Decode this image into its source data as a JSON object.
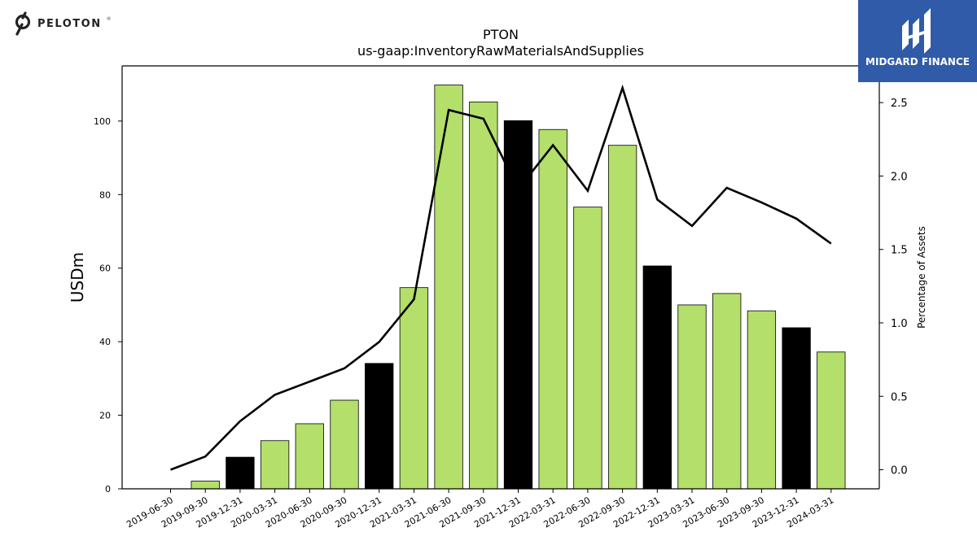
{
  "branding": {
    "left_logo_text": "PELOTON",
    "left_logo_mark": "®",
    "right_logo_text": "MIDGARD FINANCE",
    "badge_color": "#2f5ba8"
  },
  "chart_data": {
    "type": "bar",
    "title": "PTON",
    "subtitle": "us-gaap:InventoryRawMaterialsAndSupplies",
    "ylabel": "USDm",
    "y2label": "Percentage of Assets",
    "ylim": [
      0,
      115
    ],
    "y2lim": [
      -0.13,
      2.75
    ],
    "yticks": [
      0,
      20,
      40,
      60,
      80,
      100
    ],
    "y2ticks": [
      0.0,
      0.5,
      1.0,
      1.5,
      2.0,
      2.5
    ],
    "categories": [
      "2019-06-30",
      "2019-09-30",
      "2019-12-31",
      "2020-03-31",
      "2020-06-30",
      "2020-09-30",
      "2020-12-31",
      "2021-03-31",
      "2021-06-30",
      "2021-09-30",
      "2021-12-31",
      "2022-03-31",
      "2022-06-30",
      "2022-09-30",
      "2022-12-31",
      "2023-03-31",
      "2023-06-30",
      "2023-09-30",
      "2023-12-31",
      "2024-03-31"
    ],
    "series": [
      {
        "type": "bar",
        "axis": "left",
        "values": [
          0,
          2.1,
          8.6,
          13.1,
          17.7,
          24.1,
          34.1,
          54.7,
          109.8,
          105.2,
          100.1,
          97.7,
          76.6,
          93.4,
          60.6,
          50.0,
          53.1,
          48.4,
          43.8,
          37.2
        ],
        "colors": [
          "#b3df6a",
          "#b3df6a",
          "#000000",
          "#b3df6a",
          "#b3df6a",
          "#b3df6a",
          "#000000",
          "#b3df6a",
          "#b3df6a",
          "#b3df6a",
          "#000000",
          "#b3df6a",
          "#b3df6a",
          "#b3df6a",
          "#000000",
          "#b3df6a",
          "#b3df6a",
          "#b3df6a",
          "#000000",
          "#b3df6a"
        ]
      },
      {
        "type": "line",
        "axis": "right",
        "color": "#000000",
        "values": [
          0.0,
          0.09,
          0.33,
          0.51,
          0.6,
          0.69,
          0.87,
          1.16,
          2.45,
          2.39,
          1.91,
          2.21,
          1.9,
          2.6,
          1.84,
          1.66,
          1.92,
          1.82,
          1.71,
          1.54
        ]
      }
    ],
    "grid": false,
    "legend": "none"
  }
}
